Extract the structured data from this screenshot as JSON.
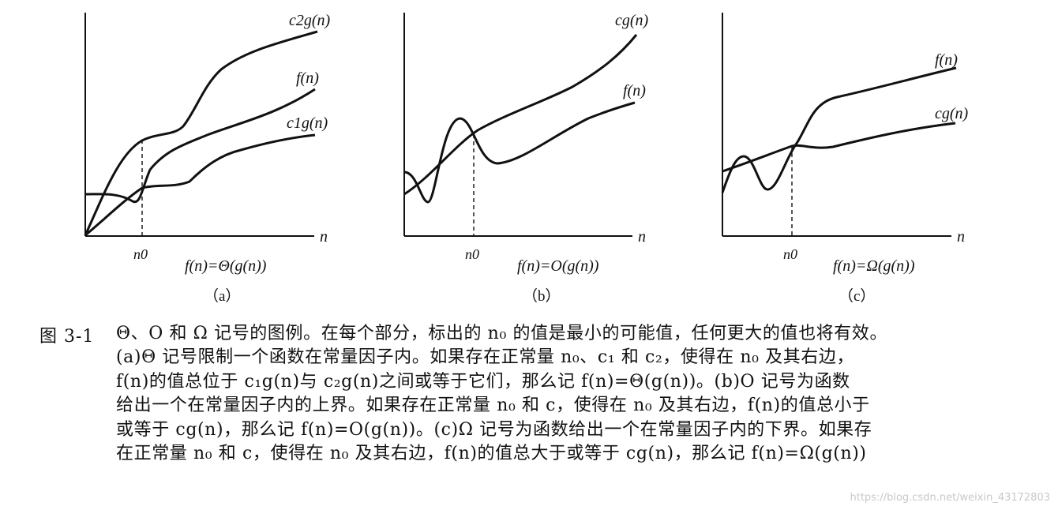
{
  "panels": [
    {
      "id": "a",
      "n_axis_label": "n",
      "n0_label": "n0",
      "curve_labels": {
        "upper": "c2g(n)",
        "middle": "f(n)",
        "lower": "c1g(n)"
      },
      "formula": "f(n)=Θ(g(n))",
      "panel_label": "（a）"
    },
    {
      "id": "b",
      "n_axis_label": "n",
      "n0_label": "n0",
      "curve_labels": {
        "upper": "cg(n)",
        "lower": "f(n)"
      },
      "formula": "f(n)=O(g(n))",
      "panel_label": "（b）"
    },
    {
      "id": "c",
      "n_axis_label": "n",
      "n0_label": "n0",
      "curve_labels": {
        "upper": "f(n)",
        "lower": "cg(n)"
      },
      "formula": "f(n)=Ω(g(n))",
      "panel_label": "（c）"
    }
  ],
  "caption": {
    "label": "图 3-1",
    "lines": [
      "Θ、O 和 Ω 记号的图例。在每个部分，标出的 n₀ 的值是最小的可能值，任何更大的值也将有效。",
      "(a)Θ 记号限制一个函数在常量因子内。如果存在正常量 n₀、c₁ 和 c₂，使得在 n₀ 及其右边，",
      "f(n)的值总位于 c₁g(n)与 c₂g(n)之间或等于它们，那么记 f(n)=Θ(g(n))。(b)O 记号为函数",
      "给出一个在常量因子内的上界。如果存在正常量 n₀ 和 c，使得在 n₀ 及其右边，f(n)的值总小于",
      "或等于 cg(n)，那么记 f(n)=O(g(n))。(c)Ω 记号为函数给出一个在常量因子内的下界。如果存",
      "在正常量 n₀ 和 c，使得在 n₀ 及其右边，f(n)的值总大于或等于 cg(n)，那么记 f(n)=Ω(g(n))"
    ]
  },
  "watermark": "https://blog.csdn.net/weixin_43172803"
}
